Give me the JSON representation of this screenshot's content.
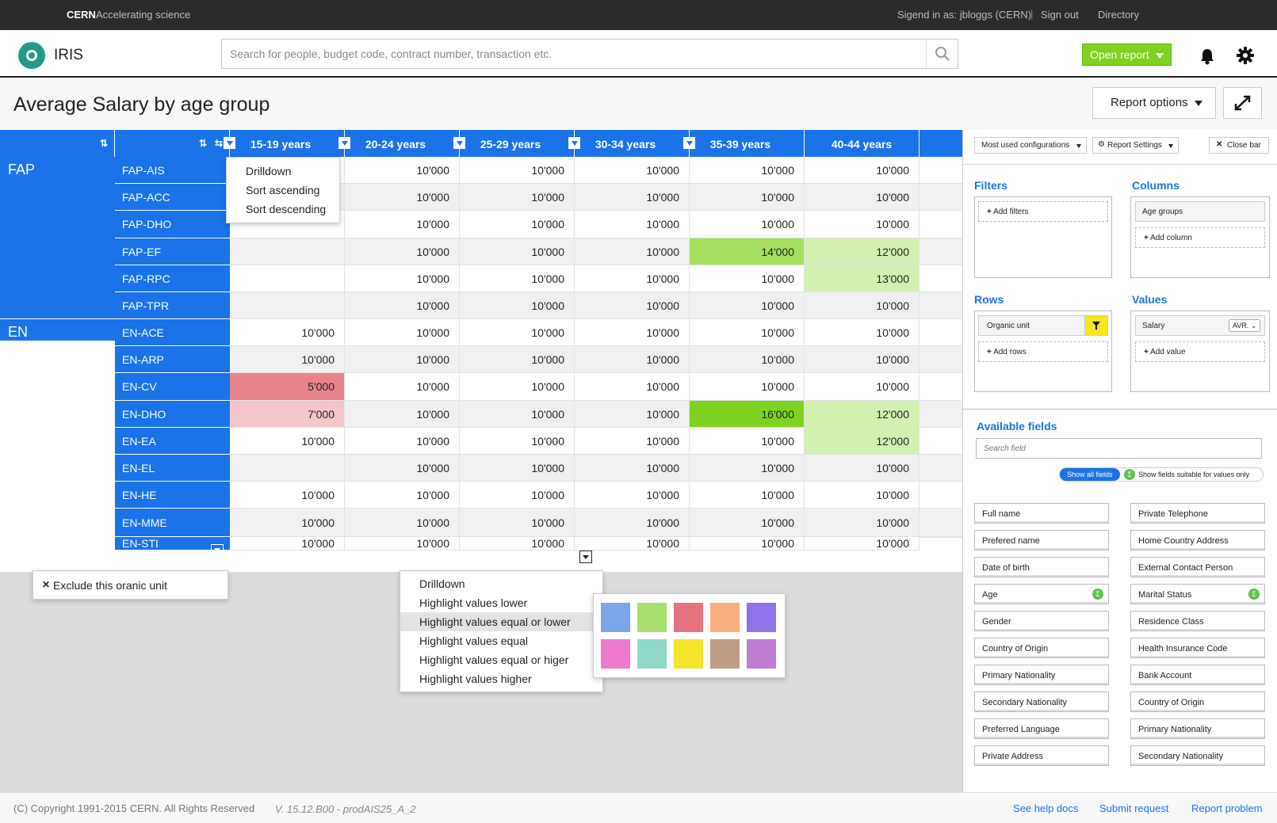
{
  "cern": {
    "brand": "CERN",
    "tagline": "Accelerating science",
    "signed_in": "Sigend in as: jbloggs (CERN)",
    "separator": "|",
    "sign_out": "Sign out",
    "directory": "Directory"
  },
  "app": {
    "name": "IRIS",
    "search_placeholder": "Search for people, budget code, contract number, transaction etc.",
    "open_report": "Open report"
  },
  "page": {
    "title": "Average Salary by age group",
    "report_options": "Report options"
  },
  "grid": {
    "columns": [
      "15-19 years",
      "20-24 years",
      "25-29 years",
      "30-34 years",
      "35-39 years",
      "40-44 years"
    ],
    "groups": [
      {
        "name": "FAP",
        "rows": 6
      },
      {
        "name": "EN",
        "rows": 9
      }
    ],
    "rows": [
      {
        "label": "FAP-AIS",
        "values": [
          "",
          "10'000",
          "10'000",
          "10'000",
          "10'000",
          "10'000"
        ]
      },
      {
        "label": "FAP-ACC",
        "values": [
          "",
          "10'000",
          "10'000",
          "10'000",
          "10'000",
          "10'000"
        ]
      },
      {
        "label": "FAP-DHO",
        "values": [
          "",
          "10'000",
          "10'000",
          "10'000",
          "10'000",
          "10'000"
        ]
      },
      {
        "label": "FAP-EF",
        "values": [
          "",
          "10'000",
          "10'000",
          "10'000",
          "14'000",
          "12'000"
        ]
      },
      {
        "label": "FAP-RPC",
        "values": [
          "",
          "10'000",
          "10'000",
          "10'000",
          "10'000",
          "13'000"
        ]
      },
      {
        "label": "FAP-TPR",
        "values": [
          "",
          "10'000",
          "10'000",
          "10'000",
          "10'000",
          "10'000"
        ]
      },
      {
        "label": "EN-ACE",
        "values": [
          "10'000",
          "10'000",
          "10'000",
          "10'000",
          "10'000",
          "10'000"
        ]
      },
      {
        "label": "EN-ARP",
        "values": [
          "10'000",
          "10'000",
          "10'000",
          "10'000",
          "10'000",
          "10'000"
        ]
      },
      {
        "label": "EN-CV",
        "values": [
          "5'000",
          "10'000",
          "10'000",
          "10'000",
          "10'000",
          "10'000"
        ]
      },
      {
        "label": "EN-DHO",
        "values": [
          "7'000",
          "10'000",
          "10'000",
          "10'000",
          "16'000",
          "12'000"
        ]
      },
      {
        "label": "EN-EA",
        "values": [
          "10'000",
          "10'000",
          "10'000",
          "10'000",
          "10'000",
          "12'000"
        ]
      },
      {
        "label": "EN-EL",
        "values": [
          "",
          "10'000",
          "10'000",
          "10'000",
          "10'000",
          "10'000"
        ]
      },
      {
        "label": "EN-HE",
        "values": [
          "10'000",
          "10'000",
          "10'000",
          "10'000",
          "10'000",
          "10'000"
        ]
      },
      {
        "label": "EN-MME",
        "values": [
          "10'000",
          "10'000",
          "10'000",
          "10'000",
          "10'000",
          "10'000"
        ]
      },
      {
        "label": "EN-STI",
        "values": [
          "10'000",
          "10'000",
          "10'000",
          "10'000",
          "10'000",
          "10'000"
        ]
      }
    ],
    "highlights": {
      "8-0": "#e9838a",
      "9-0": "#f5c6ca",
      "3-4": "#a3e05d",
      "9-4": "#7ed321",
      "3-5": "#d2f0b0",
      "4-5": "#d2f0b0",
      "9-5": "#d2f0b0",
      "10-5": "#d2f0b0"
    }
  },
  "column_menu": [
    "Drilldown",
    "Sort ascending",
    "Sort descending"
  ],
  "row_menu": {
    "exclude": "Exclude this oranic unit"
  },
  "cell_menu": [
    "Drilldown",
    "Highlight values lower",
    "Highlight values equal or lower",
    "Highlight values equal",
    "Highlight values equal or higer",
    "Highlight values higher"
  ],
  "swatch_colors": [
    "#7ba7e8",
    "#a8e06e",
    "#e6737e",
    "#f9b07e",
    "#8f72e8",
    "#ee79cf",
    "#8fd9c9",
    "#f6e42d",
    "#bf9c83",
    "#bd7ed1"
  ],
  "side": {
    "most_used": "Most used configurations",
    "report_settings": "Report Settings",
    "close_bar": "Close bar",
    "filters": "Filters",
    "add_filters": "Add filters",
    "columns": "Columns",
    "age_groups": "Age groups",
    "add_column": "Add column",
    "rows": "Rows",
    "organic_unit": "Organic unit",
    "add_rows": "Add rows",
    "values": "Values",
    "salary": "Salary",
    "avr": "AVR.",
    "add_value": "Add value",
    "available": "Available fields",
    "search_field": "Search field",
    "show_all": "Show all fields",
    "show_values": "Show fields suitable for values only",
    "fields_left": [
      "Full name",
      "Prefered name",
      "Date of birth",
      "Age",
      "Gender",
      "Country of Origin",
      "Primary Nationality",
      "Secondary Nationality",
      "Preferred Language",
      "Private Address"
    ],
    "fields_right": [
      "Private Telephone",
      "Home Country Address",
      "External Contact Person",
      "Marital Status",
      "Residence Class",
      "Health Insurance Code",
      "Bank Account",
      "Country of Origin",
      "Primary Nationality",
      "Secondary Nationality"
    ]
  },
  "footer": {
    "copyright": "(C) Copyright 1991-2015 CERN. All Rights Reserved",
    "version": "V. 15.12.B00 - prodAIS25_A_2",
    "help": "See help docs",
    "submit": "Submit request",
    "report": "Report problem"
  }
}
